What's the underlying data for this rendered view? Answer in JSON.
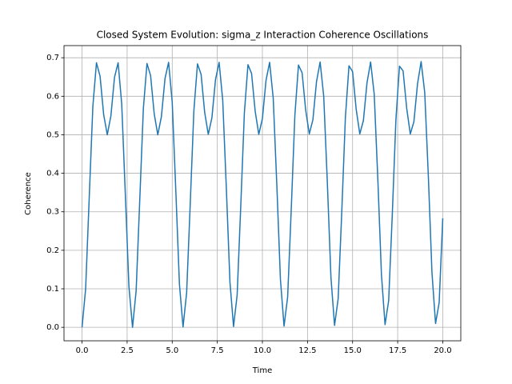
{
  "chart_data": {
    "type": "line",
    "title": "Closed System Evolution: sigma_z Interaction Coherence Oscillations",
    "x_label": "Time",
    "y_label": "Coherence",
    "x": [
      0,
      0.2,
      0.4,
      0.6,
      0.8,
      1,
      1.2,
      1.4,
      1.6,
      1.8,
      2,
      2.2,
      2.4,
      2.6,
      2.8,
      3,
      3.2,
      3.4,
      3.6,
      3.8,
      4,
      4.2,
      4.4,
      4.6,
      4.8,
      5,
      5.2,
      5.4,
      5.6,
      5.8,
      6,
      6.2,
      6.4,
      6.6,
      6.8,
      7,
      7.2,
      7.4,
      7.6,
      7.8,
      8,
      8.2,
      8.4,
      8.6,
      8.8,
      9,
      9.2,
      9.4,
      9.6,
      9.8,
      10,
      10.2,
      10.4,
      10.6,
      10.8,
      11,
      11.2,
      11.4,
      11.6,
      11.8,
      12,
      12.2,
      12.4,
      12.6,
      12.8,
      13,
      13.2,
      13.4,
      13.6,
      13.8,
      14,
      14.2,
      14.4,
      14.6,
      14.8,
      15,
      15.2,
      15.4,
      15.6,
      15.8,
      16,
      16.2,
      16.4,
      16.6,
      16.8,
      17,
      17.2,
      17.4,
      17.6,
      17.8,
      18,
      18.2,
      18.4,
      18.6,
      18.8,
      19,
      19.2,
      19.4,
      19.6,
      19.8,
      20
    ],
    "series": [
      {
        "color": "#1f77b4",
        "values": [
          0,
          0.1,
          0.338,
          0.574,
          0.687,
          0.652,
          0.552,
          0.5,
          0.549,
          0.649,
          0.687,
          0.58,
          0.346,
          0.106,
          0.0,
          0.095,
          0.33,
          0.568,
          0.685,
          0.654,
          0.555,
          0.5,
          0.547,
          0.646,
          0.688,
          0.585,
          0.354,
          0.112,
          0.001,
          0.09,
          0.322,
          0.562,
          0.684,
          0.657,
          0.558,
          0.501,
          0.544,
          0.643,
          0.688,
          0.59,
          0.362,
          0.118,
          0.002,
          0.084,
          0.315,
          0.556,
          0.682,
          0.659,
          0.561,
          0.501,
          0.542,
          0.641,
          0.688,
          0.595,
          0.369,
          0.124,
          0.003,
          0.079,
          0.307,
          0.55,
          0.681,
          0.661,
          0.564,
          0.502,
          0.539,
          0.638,
          0.689,
          0.6,
          0.377,
          0.13,
          0.005,
          0.074,
          0.299,
          0.544,
          0.679,
          0.664,
          0.566,
          0.502,
          0.537,
          0.635,
          0.689,
          0.605,
          0.385,
          0.137,
          0.007,
          0.069,
          0.291,
          0.538,
          0.678,
          0.666,
          0.569,
          0.502,
          0.534,
          0.632,
          0.69,
          0.61,
          0.393,
          0.143,
          0.01,
          0.064,
          0.283
        ]
      }
    ],
    "xlim": [
      -1,
      21
    ],
    "ylim": [
      -0.035,
      0.7315
    ],
    "xticks": [
      {
        "value": 0,
        "label": "0.0"
      },
      2.5,
      {
        "value": 5,
        "label": "5.0"
      },
      7.5,
      {
        "value": 10,
        "label": "10.0"
      },
      12.5,
      {
        "value": 15,
        "label": "15.0"
      },
      17.5,
      {
        "value": 20,
        "label": "20.0"
      }
    ],
    "yticks": [
      {
        "value": 0,
        "label": "0.0"
      },
      0.1,
      0.2,
      0.3,
      0.4,
      0.5,
      0.6,
      0.7
    ],
    "grid": true
  }
}
